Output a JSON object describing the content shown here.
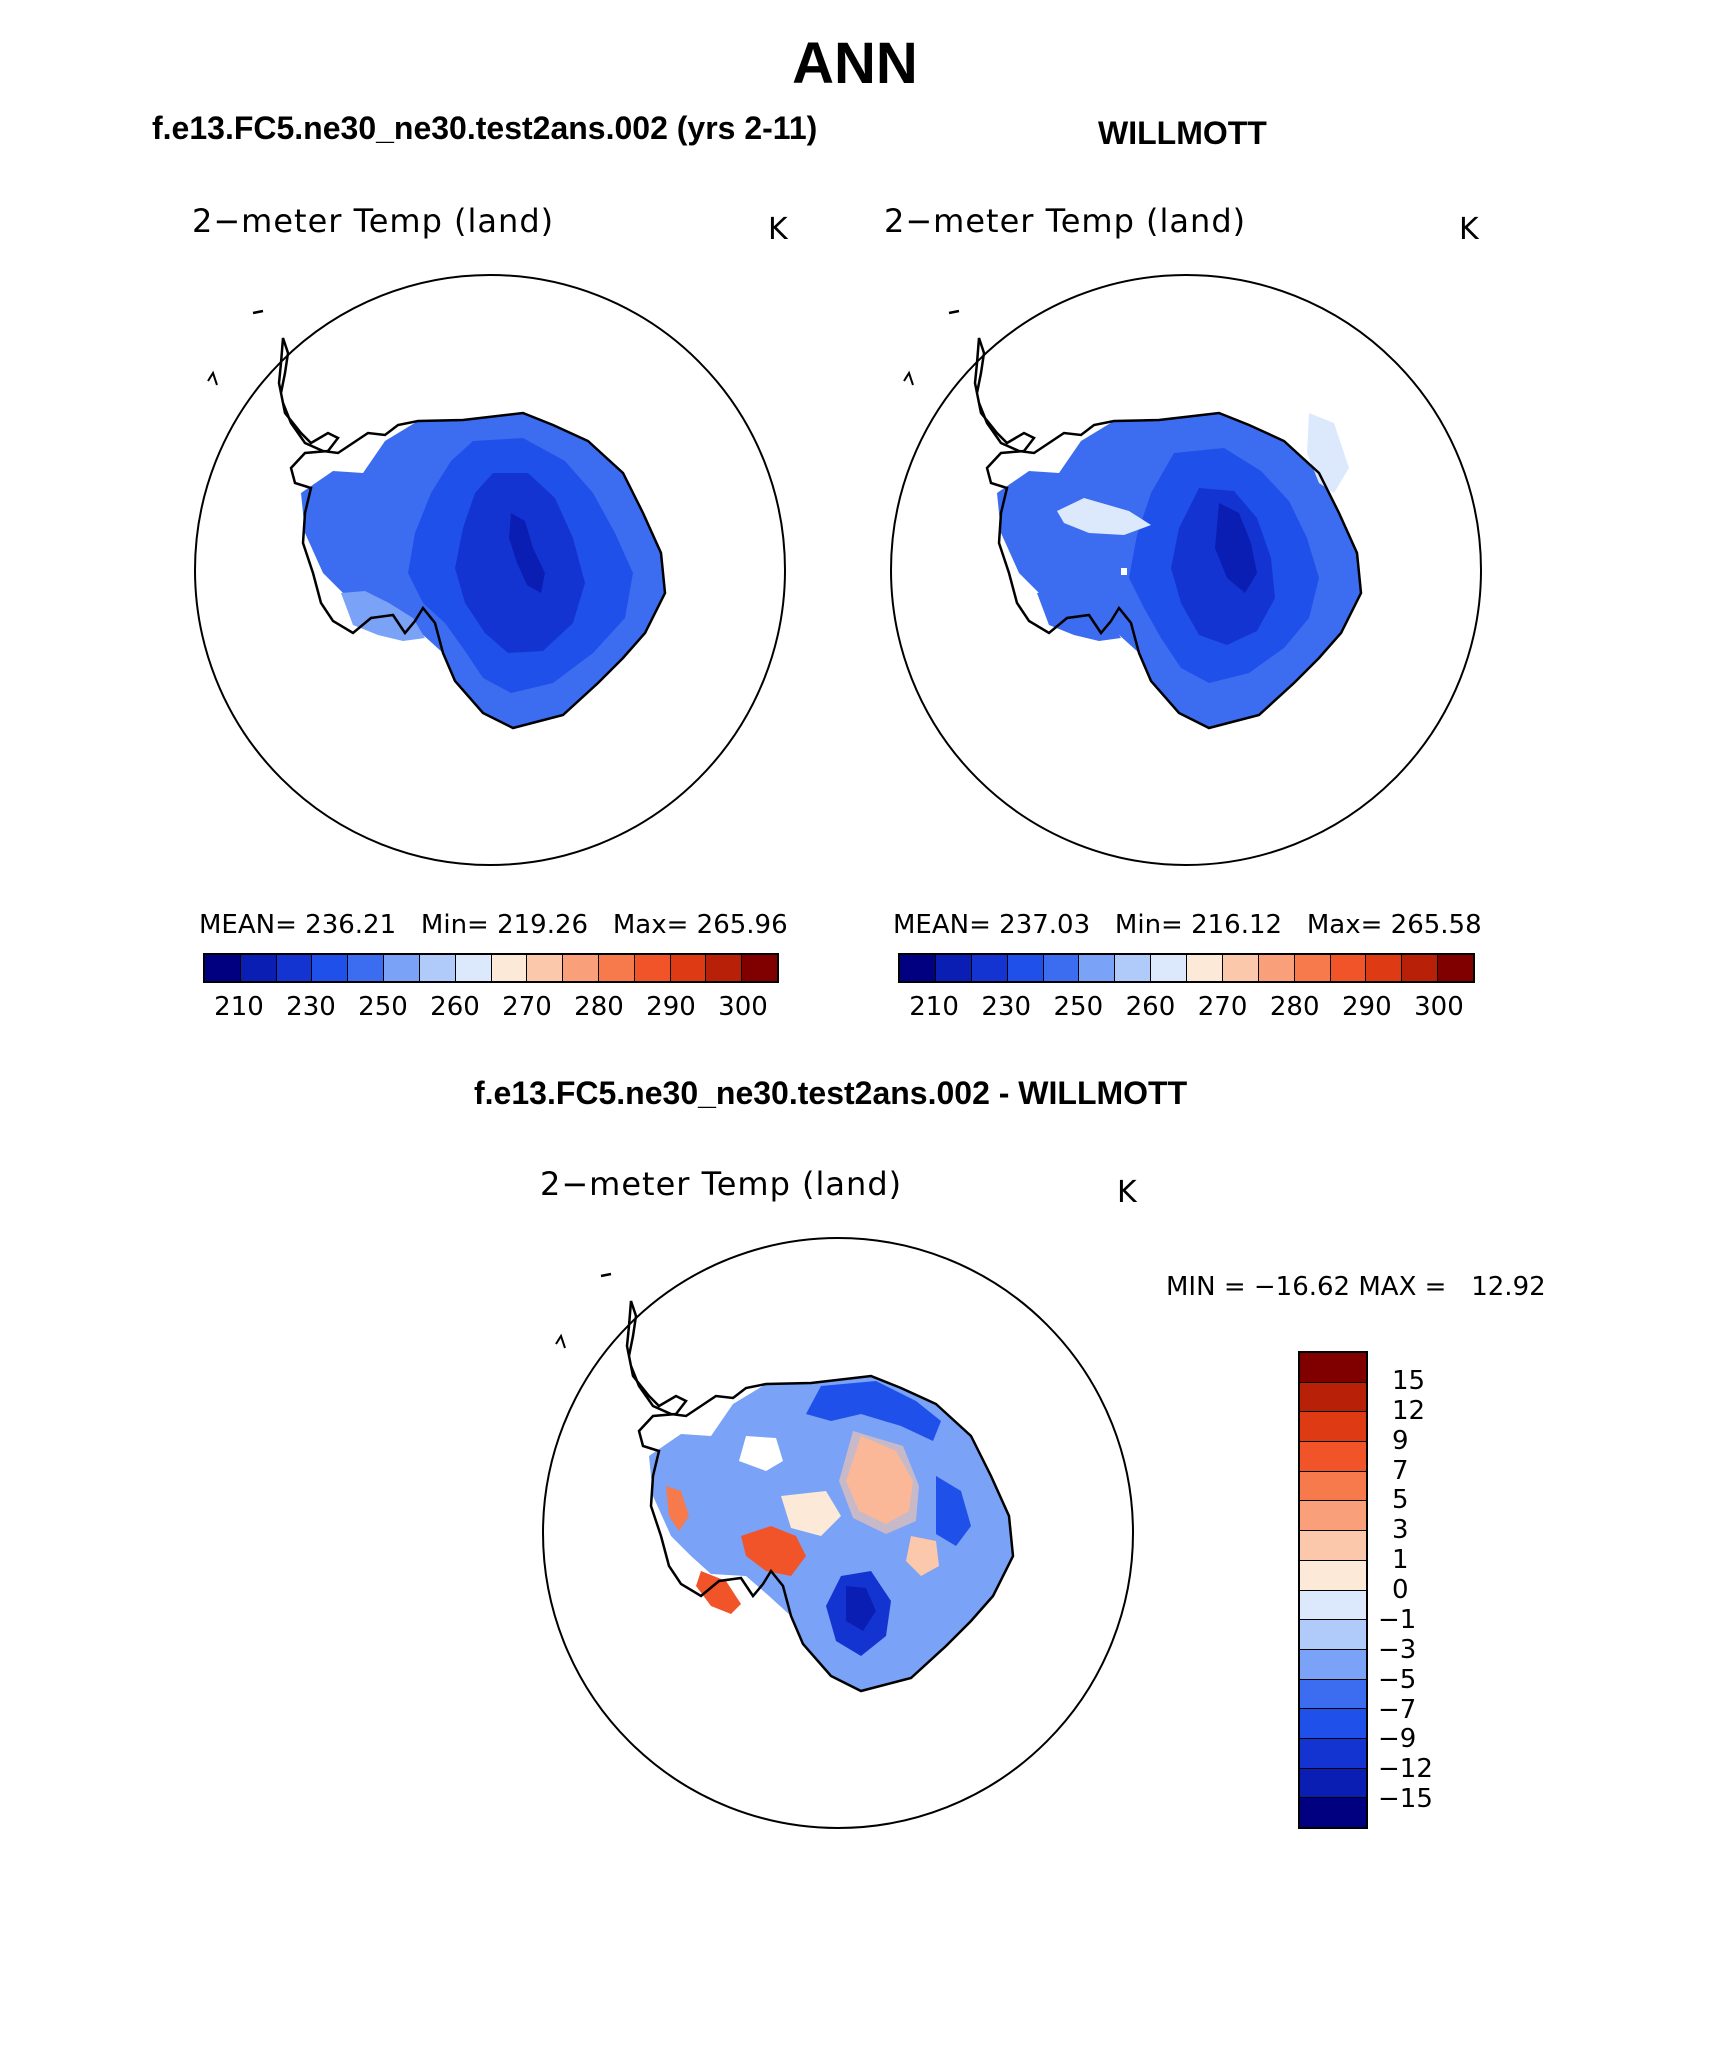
{
  "title": "ANN",
  "panel_left": {
    "case_title": "f.e13.FC5.ne30_ne30.test2ans.002 (yrs 2-11)",
    "plot_label": "2−meter Temp (land)",
    "unit": "K",
    "stats_text": "MEAN= 236.21   Min= 219.26   Max= 265.96"
  },
  "panel_right": {
    "case_title": "WILLMOTT",
    "plot_label": "2−meter Temp (land)",
    "unit": "K",
    "stats_text": "MEAN= 237.03   Min= 216.12   Max= 265.58"
  },
  "panel_diff": {
    "case_title": "f.e13.FC5.ne30_ne30.test2ans.002 - WILLMOTT",
    "plot_label": "2−meter Temp (land)",
    "unit": "K",
    "minmax_text": "MIN = −16.62 MAX =   12.92"
  },
  "colorbar_abs": {
    "tick_labels": [
      "210",
      "230",
      "250",
      "260",
      "270",
      "280",
      "290",
      "300"
    ],
    "colors": [
      "#000080",
      "#0a1eb4",
      "#1434d2",
      "#2050ea",
      "#3c6cf0",
      "#7aa2f6",
      "#b0cbfa",
      "#dce9fc",
      "#fde9d8",
      "#fcc8ac",
      "#f9a07a",
      "#f67a4c",
      "#f2542a",
      "#de3a14",
      "#b82008",
      "#800000"
    ]
  },
  "colorbar_diff": {
    "tick_labels": [
      "15",
      "12",
      "9",
      "7",
      "5",
      "3",
      "1",
      "0",
      "−1",
      "−3",
      "−5",
      "−7",
      "−9",
      "−12",
      "−15"
    ],
    "colors": [
      "#800000",
      "#b82008",
      "#de3a14",
      "#f2542a",
      "#f67a4c",
      "#f9a07a",
      "#fcc8ac",
      "#fde9d8",
      "#dce9fc",
      "#b0cbfa",
      "#7aa2f6",
      "#3c6cf0",
      "#2050ea",
      "#1434d2",
      "#0a1eb4",
      "#000080"
    ]
  }
}
